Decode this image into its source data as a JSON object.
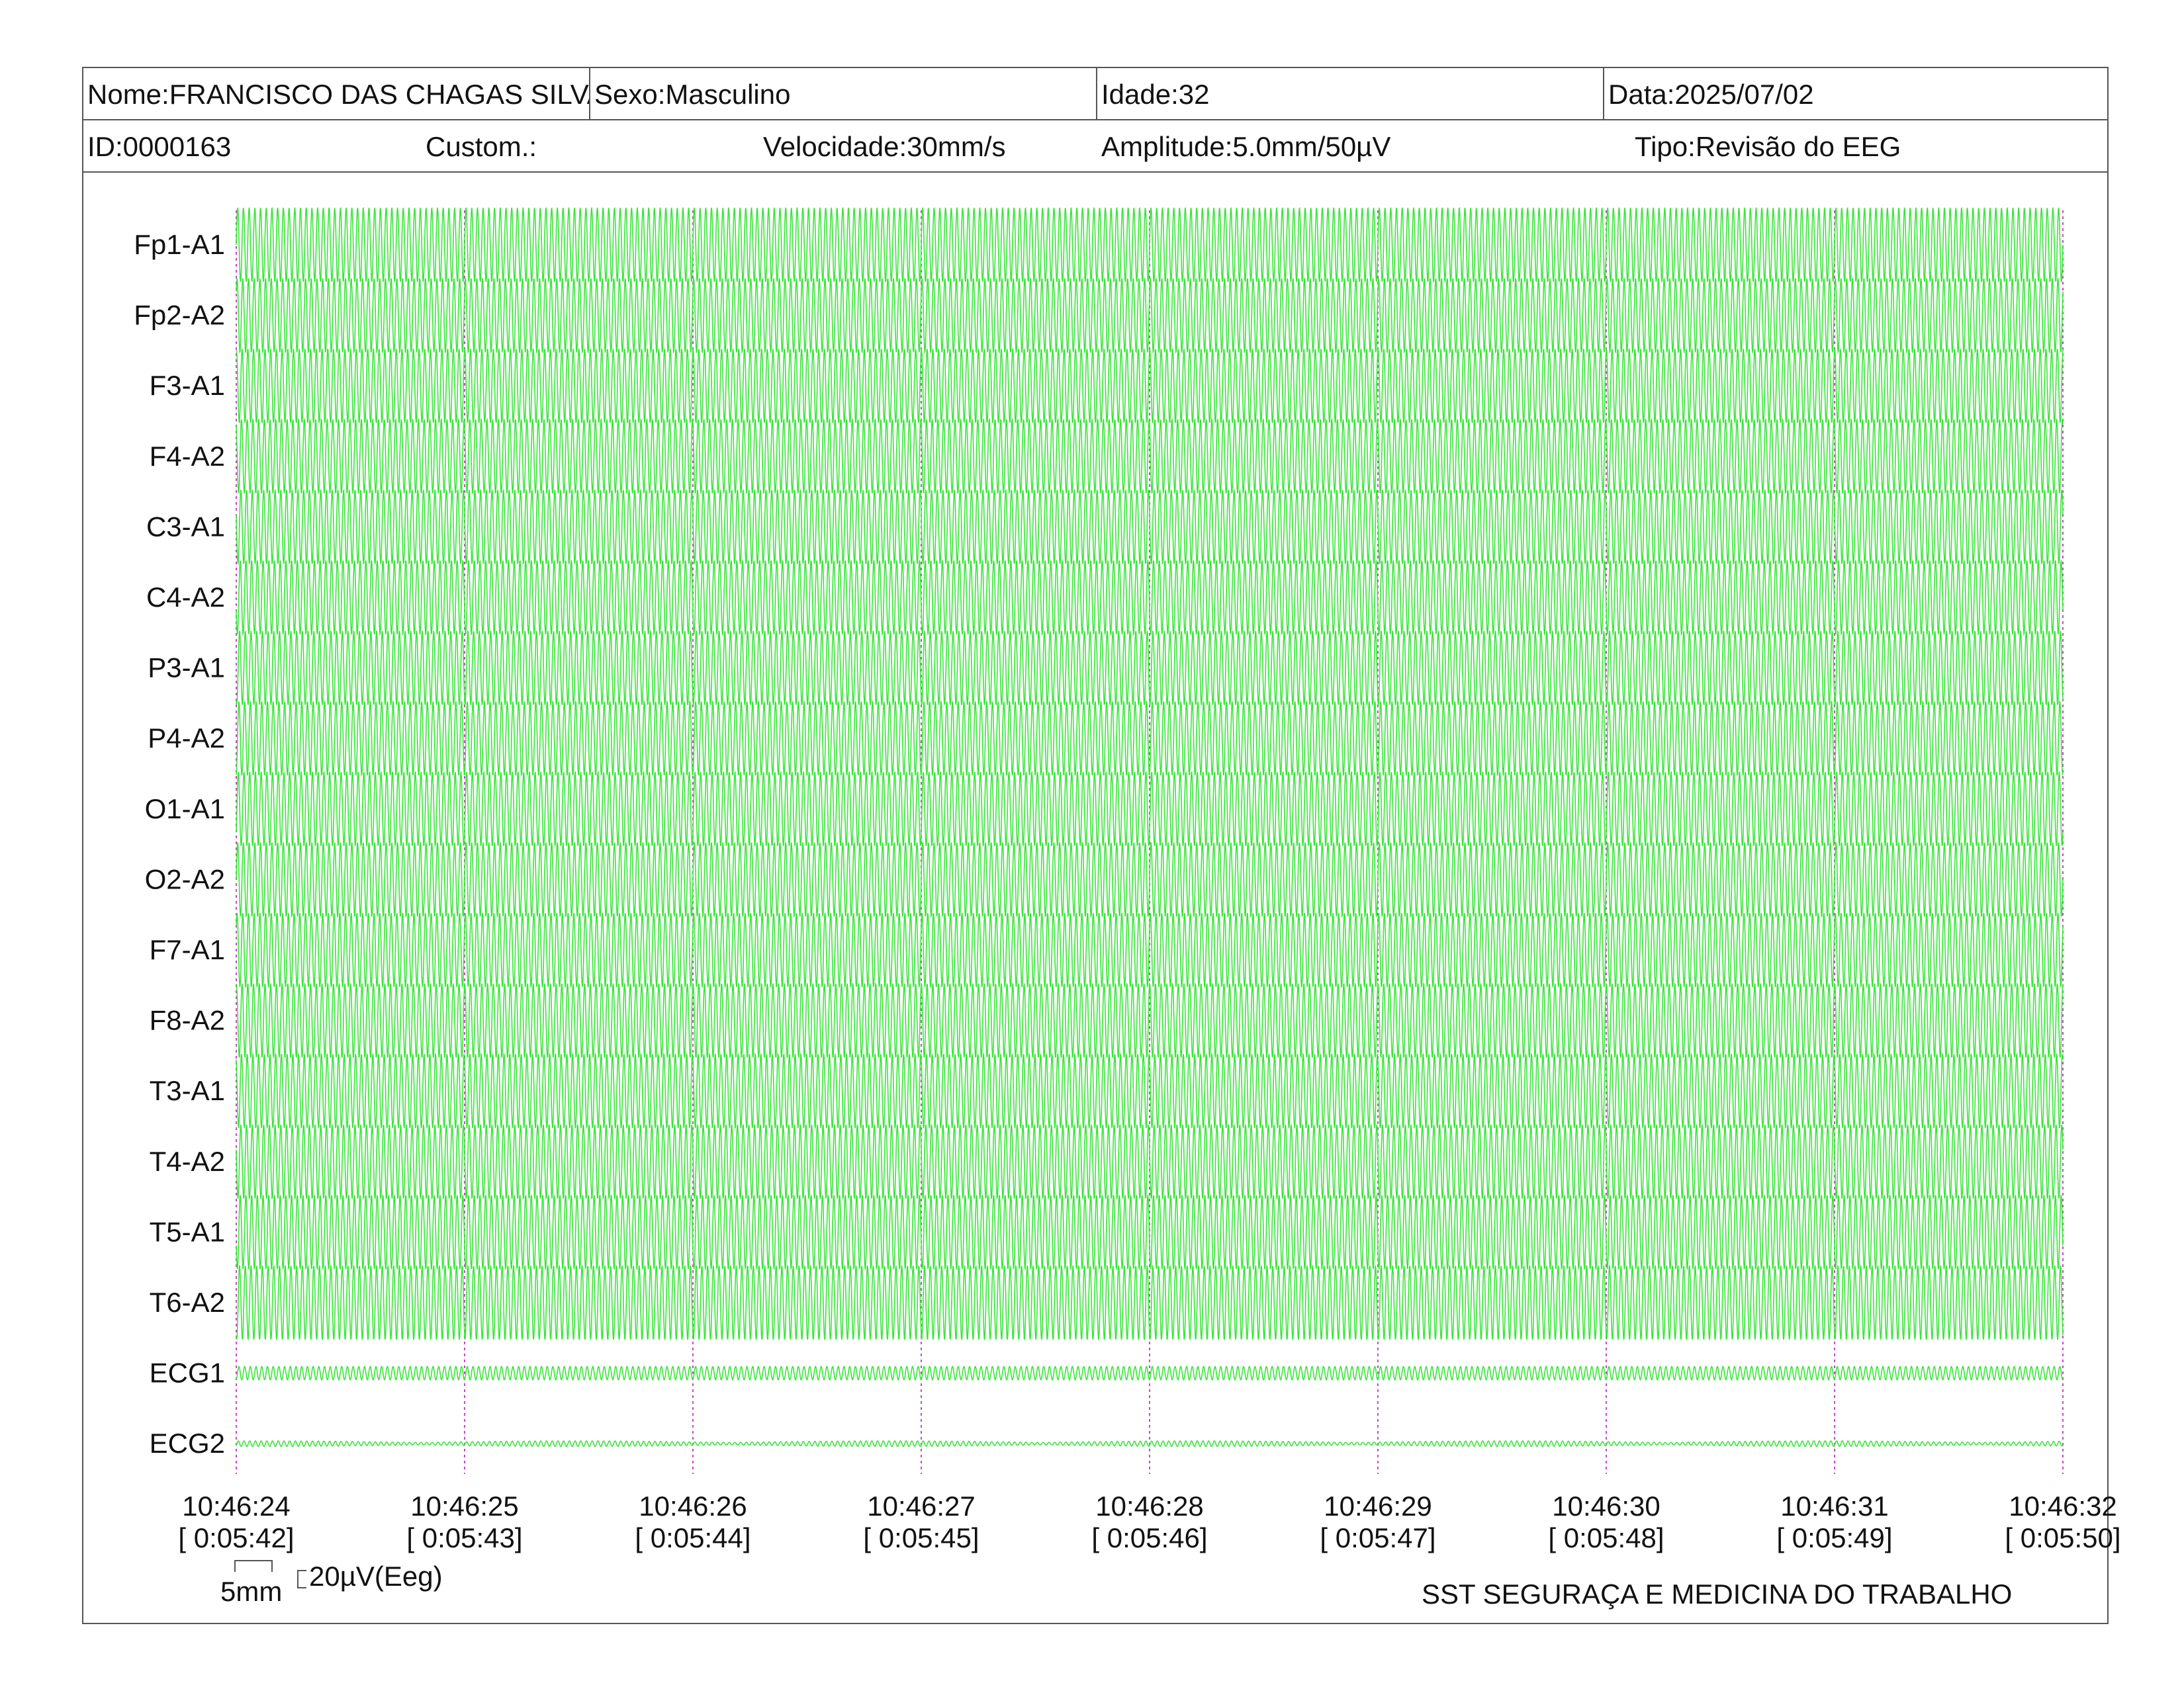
{
  "header": {
    "name": "Nome:FRANCISCO DAS CHAGAS SILVA",
    "sex": "Sexo:Masculino",
    "age": "Idade:32",
    "date": "Data:2025/07/02",
    "id": "ID:0000163",
    "custom": "Custom.:",
    "speed": "Velocidade:30mm/s",
    "amplitude": "Amplitude:5.0mm/50µV",
    "type": "Tipo:Revisão do EEG"
  },
  "footer": {
    "scale_mm": "5mm",
    "scale_uv": "20µV(Eeg)",
    "company": "SST SEGURAÇA E MEDICINA DO TRABALHO"
  },
  "colors": {
    "trace": "#39e639",
    "marker": "#cc44cc",
    "border": "#555555"
  },
  "chart_data": {
    "type": "line",
    "channels": [
      "Fp1-A1",
      "Fp2-A2",
      "F3-A1",
      "F4-A2",
      "C3-A1",
      "C4-A2",
      "P3-A1",
      "P4-A2",
      "O1-A1",
      "O2-A2",
      "F7-A1",
      "F8-A2",
      "T3-A1",
      "T4-A2",
      "T5-A1",
      "T6-A2",
      "ECG1",
      "ECG2"
    ],
    "time_ticks": [
      {
        "clock": "10:46:24",
        "elapsed": "[ 0:05:42]"
      },
      {
        "clock": "10:46:25",
        "elapsed": "[ 0:05:43]"
      },
      {
        "clock": "10:46:26",
        "elapsed": "[ 0:05:44]"
      },
      {
        "clock": "10:46:27",
        "elapsed": "[ 0:05:45]"
      },
      {
        "clock": "10:46:28",
        "elapsed": "[ 0:05:46]"
      },
      {
        "clock": "10:46:29",
        "elapsed": "[ 0:05:47]"
      },
      {
        "clock": "10:46:30",
        "elapsed": "[ 0:05:48]"
      },
      {
        "clock": "10:46:31",
        "elapsed": "[ 0:05:49]"
      },
      {
        "clock": "10:46:32",
        "elapsed": "[ 0:05:50]"
      }
    ],
    "x_range_seconds": [
      0,
      8
    ],
    "eeg_frequency_hz": 40,
    "ecg1_frequency_hz": 40,
    "ecg2_frequency_hz": 40,
    "grid": false
  }
}
